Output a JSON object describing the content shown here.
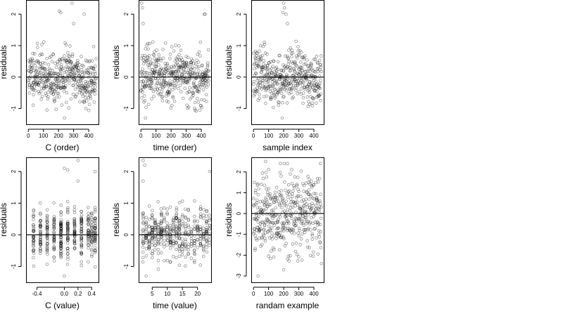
{
  "chart_data": [
    {
      "type": "scatter",
      "title": "",
      "xlabel": "C (order)",
      "ylabel": "residuals",
      "xlim": [
        -15,
        465
      ],
      "ylim": [
        -1.5,
        2.45
      ],
      "xticks": [
        0,
        100,
        200,
        300,
        400
      ],
      "xtick_labels": [
        "0",
        "100",
        "200",
        "300",
        "400"
      ],
      "yticks": [
        -1,
        0,
        1,
        2
      ],
      "ytick_labels": [
        "-1",
        "0",
        "1",
        "2"
      ],
      "hline": 0,
      "series": [
        {
          "pattern": "order",
          "n": 450,
          "seed": 11,
          "spread": 0.4,
          "drift": 0.15,
          "outliers": [
            [
              205,
              2.1
            ],
            [
              215,
              2.05
            ],
            [
              290,
              2.35
            ],
            [
              370,
              2.0
            ],
            [
              300,
              1.7
            ],
            [
              240,
              -1.3
            ]
          ]
        }
      ]
    },
    {
      "type": "scatter",
      "title": "",
      "xlabel": "time (order)",
      "ylabel": "residuals",
      "xlim": [
        -15,
        465
      ],
      "ylim": [
        -1.5,
        2.45
      ],
      "xticks": [
        0,
        100,
        200,
        300,
        400
      ],
      "xtick_labels": [
        "0",
        "100",
        "200",
        "300",
        "400"
      ],
      "yticks": [
        -1,
        0,
        1,
        2
      ],
      "ytick_labels": [
        "-1",
        "0",
        "1",
        "2"
      ],
      "hline": 0,
      "series": [
        {
          "pattern": "order",
          "n": 450,
          "seed": 23,
          "spread": 0.4,
          "drift": 0.15,
          "outliers": [
            [
              5,
              2.35
            ],
            [
              10,
              2.2
            ],
            [
              15,
              1.7
            ],
            [
              420,
              2.0
            ],
            [
              425,
              2.0
            ],
            [
              30,
              -1.3
            ]
          ]
        }
      ]
    },
    {
      "type": "scatter",
      "title": "",
      "xlabel": "sample index",
      "ylabel": "residuals",
      "xlim": [
        -15,
        465
      ],
      "ylim": [
        -1.5,
        2.45
      ],
      "xticks": [
        0,
        100,
        200,
        300,
        400
      ],
      "xtick_labels": [
        "0",
        "100",
        "200",
        "300",
        "400"
      ],
      "yticks": [
        -1,
        0,
        1,
        2
      ],
      "ytick_labels": [
        "-1",
        "0",
        "1",
        "2"
      ],
      "hline": 0,
      "series": [
        {
          "pattern": "order",
          "n": 450,
          "seed": 37,
          "spread": 0.4,
          "drift": 0.15,
          "outliers": [
            [
              200,
              2.35
            ],
            [
              205,
              2.2
            ],
            [
              195,
              2.05
            ],
            [
              215,
              2.0
            ],
            [
              225,
              1.7
            ],
            [
              190,
              -1.3
            ]
          ]
        }
      ]
    },
    {
      "type": "scatter",
      "title": "",
      "xlabel": "C (value)",
      "ylabel": "residuals",
      "xlim": [
        -0.56,
        0.5
      ],
      "ylim": [
        -1.5,
        2.45
      ],
      "xticks": [
        -0.4,
        0.0,
        0.2,
        0.4
      ],
      "xtick_labels": [
        "-0.4",
        "0.0",
        "0.2",
        "0.4"
      ],
      "yticks": [
        -1,
        0,
        1,
        2
      ],
      "ytick_labels": [
        "-1",
        "0",
        "1",
        "2"
      ],
      "hline": 0,
      "series": [
        {
          "pattern": "value",
          "n": 450,
          "seed": 51,
          "spread": 0.4,
          "columns": [
            -0.45,
            -0.35,
            -0.25,
            -0.15,
            -0.05,
            0.05,
            0.15,
            0.25,
            0.35,
            0.4,
            0.45
          ],
          "outliers": [
            [
              0.0,
              2.1
            ],
            [
              0.05,
              2.05
            ],
            [
              0.2,
              2.35
            ],
            [
              0.45,
              2.0
            ],
            [
              0.2,
              1.7
            ],
            [
              0.0,
              -1.3
            ]
          ]
        }
      ]
    },
    {
      "type": "scatter",
      "title": "",
      "xlabel": "time (value)",
      "ylabel": "residuals",
      "xlim": [
        0.5,
        24.5
      ],
      "ylim": [
        -1.5,
        2.45
      ],
      "xticks": [
        5,
        10,
        15,
        20
      ],
      "xtick_labels": [
        "5",
        "10",
        "15",
        "20"
      ],
      "yticks": [
        -1,
        0,
        1,
        2
      ],
      "ytick_labels": [
        "-1",
        "0",
        "1",
        "2"
      ],
      "hline": 0,
      "series": [
        {
          "pattern": "value",
          "n": 450,
          "seed": 67,
          "spread": 0.4,
          "columns": [
            2,
            3,
            4,
            5,
            6,
            7,
            8,
            9,
            10,
            11,
            12,
            13,
            14,
            15,
            16,
            17,
            18,
            19,
            20,
            21,
            22,
            23,
            24
          ],
          "outliers": [
            [
              2,
              2.35
            ],
            [
              2.5,
              2.2
            ],
            [
              2,
              1.7
            ],
            [
              24,
              2.0
            ],
            [
              3,
              -1.3
            ]
          ]
        }
      ]
    },
    {
      "type": "scatter",
      "title": "",
      "xlabel": "randam example",
      "ylabel": "residuals",
      "xlim": [
        -15,
        465
      ],
      "ylim": [
        -3.3,
        2.7
      ],
      "xticks": [
        0,
        100,
        200,
        300,
        400
      ],
      "xtick_labels": [
        "0",
        "100",
        "200",
        "300",
        "400"
      ],
      "yticks": [
        -3,
        -2,
        -1,
        0,
        1,
        2
      ],
      "ytick_labels": [
        "-3",
        "-2",
        "-1",
        "0",
        "1",
        "2"
      ],
      "hline": 0,
      "series": [
        {
          "pattern": "normal",
          "n": 450,
          "seed": 89,
          "spread": 1.0,
          "outliers": [
            [
              30,
              -3.0
            ],
            [
              200,
              -2.7
            ],
            [
              450,
              -2.4
            ],
            [
              80,
              2.5
            ]
          ]
        }
      ]
    }
  ]
}
